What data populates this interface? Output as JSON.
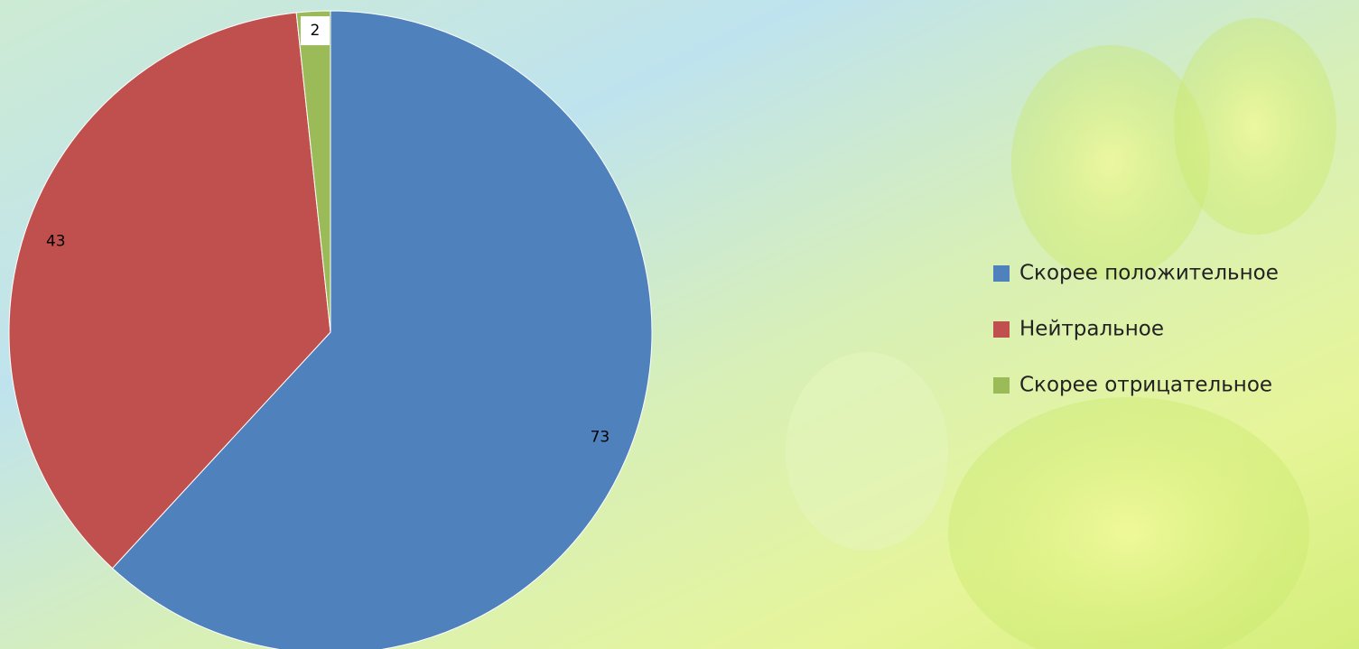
{
  "chart_data": {
    "type": "pie",
    "categories": [
      "Скорее положительное",
      "Нейтральное",
      "Скорее отрицательное"
    ],
    "values": [
      73,
      43,
      2
    ],
    "colors": [
      "#4f81bd",
      "#c0504d",
      "#9bbb59"
    ],
    "start_angle": 0,
    "direction": "clockwise",
    "legend": "right"
  }
}
